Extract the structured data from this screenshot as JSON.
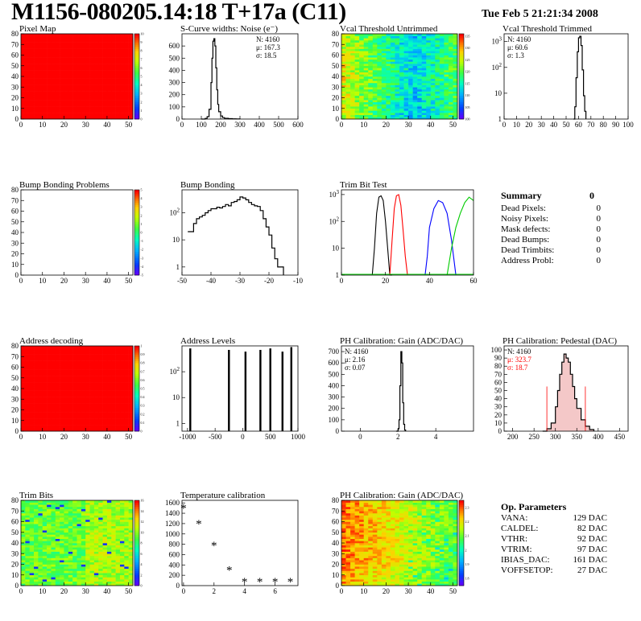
{
  "header": {
    "title": "M1156-080205.14:18 T+17a (C11)",
    "date": "Tue Feb  5 21:21:34 2008"
  },
  "summary": {
    "title": "Summary",
    "total": "0",
    "rows": [
      {
        "label": "Dead Pixels:",
        "value": "0"
      },
      {
        "label": "Noisy Pixels:",
        "value": "0"
      },
      {
        "label": "Mask defects:",
        "value": "0"
      },
      {
        "label": "Dead Bumps:",
        "value": "0"
      },
      {
        "label": "Dead Trimbits:",
        "value": "0"
      },
      {
        "label": "Address Probl:",
        "value": "0"
      }
    ]
  },
  "op_parameters": {
    "title": "Op. Parameters",
    "rows": [
      {
        "label": "VANA:",
        "value": "129 DAC"
      },
      {
        "label": "CALDEL:",
        "value": "82 DAC"
      },
      {
        "label": "VTHR:",
        "value": "92 DAC"
      },
      {
        "label": "VTRIM:",
        "value": "97 DAC"
      },
      {
        "label": "IBIAS_DAC:",
        "value": "161 DAC"
      },
      {
        "label": "VOFFSETOP:",
        "value": "27 DAC"
      }
    ]
  },
  "chart_data": [
    {
      "id": "pixel-map",
      "type": "heatmap",
      "title": "Pixel Map",
      "xlim": [
        0,
        52
      ],
      "ylim": [
        0,
        80
      ],
      "xticks": [
        0,
        10,
        20,
        30,
        40,
        50
      ],
      "yticks": [
        0,
        10,
        20,
        30,
        40,
        50,
        60,
        70,
        80
      ],
      "fill": "uniform-max",
      "colorbar": {
        "min": 0,
        "max": 10,
        "ticks": [
          0,
          1,
          2,
          3,
          4,
          5,
          6,
          7,
          8,
          9,
          10
        ]
      }
    },
    {
      "id": "scurve-noise",
      "type": "line",
      "title": "S-Curve widths: Noise (e⁻)",
      "xlim": [
        0,
        600
      ],
      "ylim": [
        0,
        700
      ],
      "xticks": [
        0,
        100,
        200,
        300,
        400,
        500,
        600
      ],
      "yticks": [
        0,
        100,
        200,
        300,
        400,
        500,
        600
      ],
      "stats": [
        "N: 4160",
        "μ: 167.3",
        "σ: 18.5"
      ],
      "x": [
        100,
        120,
        130,
        140,
        150,
        155,
        160,
        165,
        170,
        175,
        180,
        185,
        190,
        200,
        210,
        220,
        240,
        260,
        280,
        300
      ],
      "y": [
        0,
        5,
        20,
        80,
        300,
        500,
        640,
        660,
        600,
        420,
        240,
        120,
        60,
        25,
        12,
        6,
        3,
        2,
        1,
        0
      ]
    },
    {
      "id": "vcal-untrimmed",
      "type": "heatmap",
      "title": "Vcal Threshold Untrimmed",
      "xlim": [
        0,
        52
      ],
      "ylim": [
        0,
        80
      ],
      "xticks": [
        0,
        10,
        20,
        30,
        40,
        50
      ],
      "yticks": [
        0,
        10,
        20,
        30,
        40,
        50,
        60,
        70,
        80
      ],
      "fill": "noise-center-high",
      "colorbar": {
        "min": 100,
        "max": 136,
        "ticks": [
          100,
          105,
          110,
          115,
          120,
          125,
          130,
          135
        ]
      }
    },
    {
      "id": "vcal-trimmed",
      "type": "line",
      "log_y": true,
      "title": "Vcal Threshold Trimmed",
      "xlim": [
        0,
        100
      ],
      "ylim": [
        1,
        2000
      ],
      "xticks": [
        0,
        10,
        20,
        30,
        40,
        50,
        60,
        70,
        80,
        90,
        100
      ],
      "yticks": [
        1,
        10,
        100,
        1000
      ],
      "stats": [
        "N: 4160",
        "μ: 60.6",
        "σ: 1.3"
      ],
      "x": [
        56,
        57,
        58,
        59,
        60,
        61,
        62,
        63,
        64,
        65,
        66
      ],
      "y": [
        1,
        3,
        40,
        400,
        1400,
        1600,
        700,
        80,
        8,
        2,
        1
      ]
    },
    {
      "id": "bump-problems",
      "type": "heatmap",
      "title": "Bump Bonding Problems",
      "xlim": [
        0,
        52
      ],
      "ylim": [
        0,
        80
      ],
      "xticks": [
        0,
        10,
        20,
        30,
        40,
        50
      ],
      "yticks": [
        0,
        10,
        20,
        30,
        40,
        50,
        60,
        70,
        80
      ],
      "fill": "empty",
      "colorbar": {
        "min": -5,
        "max": 5,
        "ticks": [
          -5,
          -4,
          -3,
          -2,
          -1,
          0,
          1,
          2,
          3,
          4,
          5
        ]
      }
    },
    {
      "id": "bump-bonding",
      "type": "line",
      "log_y": true,
      "title": "Bump Bonding",
      "xlim": [
        -50,
        -10
      ],
      "ylim": [
        0.5,
        700
      ],
      "xticks": [
        -50,
        -40,
        -30,
        -20,
        -10
      ],
      "yticks": [
        1,
        10,
        100
      ],
      "x": [
        -48,
        -47,
        -46,
        -45,
        -44,
        -43,
        -42,
        -41,
        -40,
        -39,
        -38,
        -37,
        -36,
        -35,
        -34,
        -33,
        -32,
        -31,
        -30,
        -29,
        -28,
        -27,
        -26,
        -25,
        -24,
        -23,
        -22,
        -21,
        -20,
        -19,
        -18,
        -17,
        -16,
        -15
      ],
      "y": [
        20,
        20,
        40,
        60,
        70,
        80,
        100,
        120,
        140,
        140,
        160,
        150,
        170,
        200,
        180,
        240,
        260,
        300,
        380,
        350,
        300,
        240,
        200,
        180,
        170,
        120,
        60,
        30,
        15,
        5,
        2,
        1,
        1,
        0.5
      ]
    },
    {
      "id": "trim-bit-test",
      "type": "line",
      "log_y": true,
      "title": "Trim Bit Test",
      "xlim": [
        0,
        60
      ],
      "ylim": [
        1,
        1500
      ],
      "xticks": [
        0,
        20,
        40,
        60
      ],
      "yticks": [
        1,
        10,
        100,
        1000
      ],
      "series": [
        {
          "color": "#000000",
          "x": [
            14,
            15,
            16,
            17,
            18,
            19,
            20,
            21,
            22,
            23
          ],
          "y": [
            1,
            10,
            200,
            800,
            900,
            600,
            100,
            10,
            1,
            1
          ]
        },
        {
          "color": "#ff0000",
          "x": [
            22,
            23,
            24,
            25,
            26,
            27,
            28,
            29,
            30
          ],
          "y": [
            1,
            20,
            300,
            900,
            1000,
            400,
            50,
            5,
            1
          ]
        },
        {
          "color": "#0000ff",
          "x": [
            38,
            39,
            40,
            42,
            44,
            46,
            48,
            50,
            52
          ],
          "y": [
            1,
            5,
            60,
            300,
            600,
            500,
            200,
            20,
            1
          ]
        },
        {
          "color": "#00cc00",
          "x": [
            48,
            50,
            52,
            54,
            56,
            58,
            60
          ],
          "y": [
            1,
            10,
            60,
            200,
            500,
            800,
            600
          ]
        }
      ]
    },
    {
      "id": "address-decoding",
      "type": "heatmap",
      "title": "Address decoding",
      "xlim": [
        0,
        52
      ],
      "ylim": [
        0,
        80
      ],
      "xticks": [
        0,
        10,
        20,
        30,
        40,
        50
      ],
      "yticks": [
        0,
        10,
        20,
        30,
        40,
        50,
        60,
        70,
        80
      ],
      "fill": "uniform-max",
      "colorbar": {
        "min": 0,
        "max": 1,
        "ticks": [
          0,
          0.1,
          0.2,
          0.3,
          0.4,
          0.5,
          0.6,
          0.7,
          0.8,
          0.9,
          1
        ]
      }
    },
    {
      "id": "address-levels",
      "type": "line",
      "log_y": true,
      "title": "Address Levels",
      "xlim": [
        -1100,
        1000
      ],
      "ylim": [
        0.5,
        1000
      ],
      "xticks": [
        -1000,
        -500,
        0,
        500,
        1000
      ],
      "yticks": [
        1,
        10,
        100
      ],
      "spikes": [
        {
          "x": -950,
          "y": 800
        },
        {
          "x": -250,
          "y": 700
        },
        {
          "x": 50,
          "y": 600
        },
        {
          "x": 320,
          "y": 700
        },
        {
          "x": 500,
          "y": 800
        },
        {
          "x": 720,
          "y": 600
        },
        {
          "x": 880,
          "y": 900
        }
      ]
    },
    {
      "id": "ph-gain",
      "type": "line",
      "title": "PH Calibration: Gain (ADC/DAC)",
      "xlim": [
        -1,
        6
      ],
      "ylim": [
        0,
        750
      ],
      "xticks": [
        0,
        2,
        4
      ],
      "yticks": [
        0,
        100,
        200,
        300,
        400,
        500,
        600,
        700
      ],
      "stats": [
        "N: 4160",
        "μ: 2.16",
        "σ: 0.07"
      ],
      "x": [
        1.9,
        2.0,
        2.05,
        2.1,
        2.15,
        2.2,
        2.25,
        2.3,
        2.35,
        2.4
      ],
      "y": [
        0,
        20,
        100,
        400,
        700,
        600,
        250,
        60,
        10,
        0
      ]
    },
    {
      "id": "ph-pedestal",
      "type": "line",
      "title": "PH Calibration: Pedestal (DAC)",
      "xlim": [
        180,
        470
      ],
      "ylim": [
        0,
        105
      ],
      "xticks": [
        200,
        250,
        300,
        350,
        400,
        450
      ],
      "yticks": [
        0,
        10,
        20,
        30,
        40,
        50,
        60,
        70,
        80,
        90,
        100
      ],
      "stats": [
        "N: 4160",
        "μ: 323.7",
        "σ: 18.7"
      ],
      "x": [
        270,
        280,
        290,
        300,
        305,
        310,
        315,
        320,
        325,
        330,
        335,
        340,
        345,
        350,
        360,
        370,
        380,
        390
      ],
      "y": [
        0,
        3,
        10,
        30,
        50,
        70,
        85,
        95,
        90,
        85,
        70,
        55,
        40,
        28,
        14,
        6,
        2,
        0
      ],
      "markers": [
        280,
        370
      ]
    },
    {
      "id": "trim-bits",
      "type": "heatmap",
      "title": "Trim Bits",
      "xlim": [
        0,
        52
      ],
      "ylim": [
        0,
        80
      ],
      "xticks": [
        0,
        10,
        20,
        30,
        40,
        50
      ],
      "yticks": [
        0,
        10,
        20,
        30,
        40,
        50,
        60,
        70,
        80
      ],
      "fill": "noise-mid",
      "colorbar": {
        "min": 0,
        "max": 16,
        "ticks": [
          0,
          2,
          4,
          6,
          8,
          10,
          12,
          14,
          16
        ]
      }
    },
    {
      "id": "temperature-calibration",
      "type": "scatter",
      "title": "Temperature calibration",
      "xlim": [
        -0.1,
        7.5
      ],
      "ylim": [
        0,
        1650
      ],
      "xticks": [
        0,
        2,
        4,
        6
      ],
      "yticks": [
        0,
        200,
        400,
        600,
        800,
        1000,
        1200,
        1400,
        1600
      ],
      "x": [
        0,
        1,
        2,
        3,
        4,
        5,
        6,
        7
      ],
      "y": [
        1500,
        1200,
        780,
        300,
        80,
        80,
        80,
        80
      ]
    },
    {
      "id": "ph-gain-map",
      "type": "heatmap",
      "title": "PH Calibration: Gain (ADC/DAC)",
      "xlim": [
        0,
        52
      ],
      "ylim": [
        0,
        80
      ],
      "xticks": [
        0,
        10,
        20,
        30,
        40,
        50
      ],
      "yticks": [
        0,
        10,
        20,
        30,
        40,
        50,
        60,
        70,
        80
      ],
      "fill": "noise-left-high",
      "colorbar": {
        "min": 1.75,
        "max": 2.35,
        "ticks": [
          1.8,
          1.9,
          2,
          2.1,
          2.2,
          2.3
        ]
      }
    }
  ]
}
